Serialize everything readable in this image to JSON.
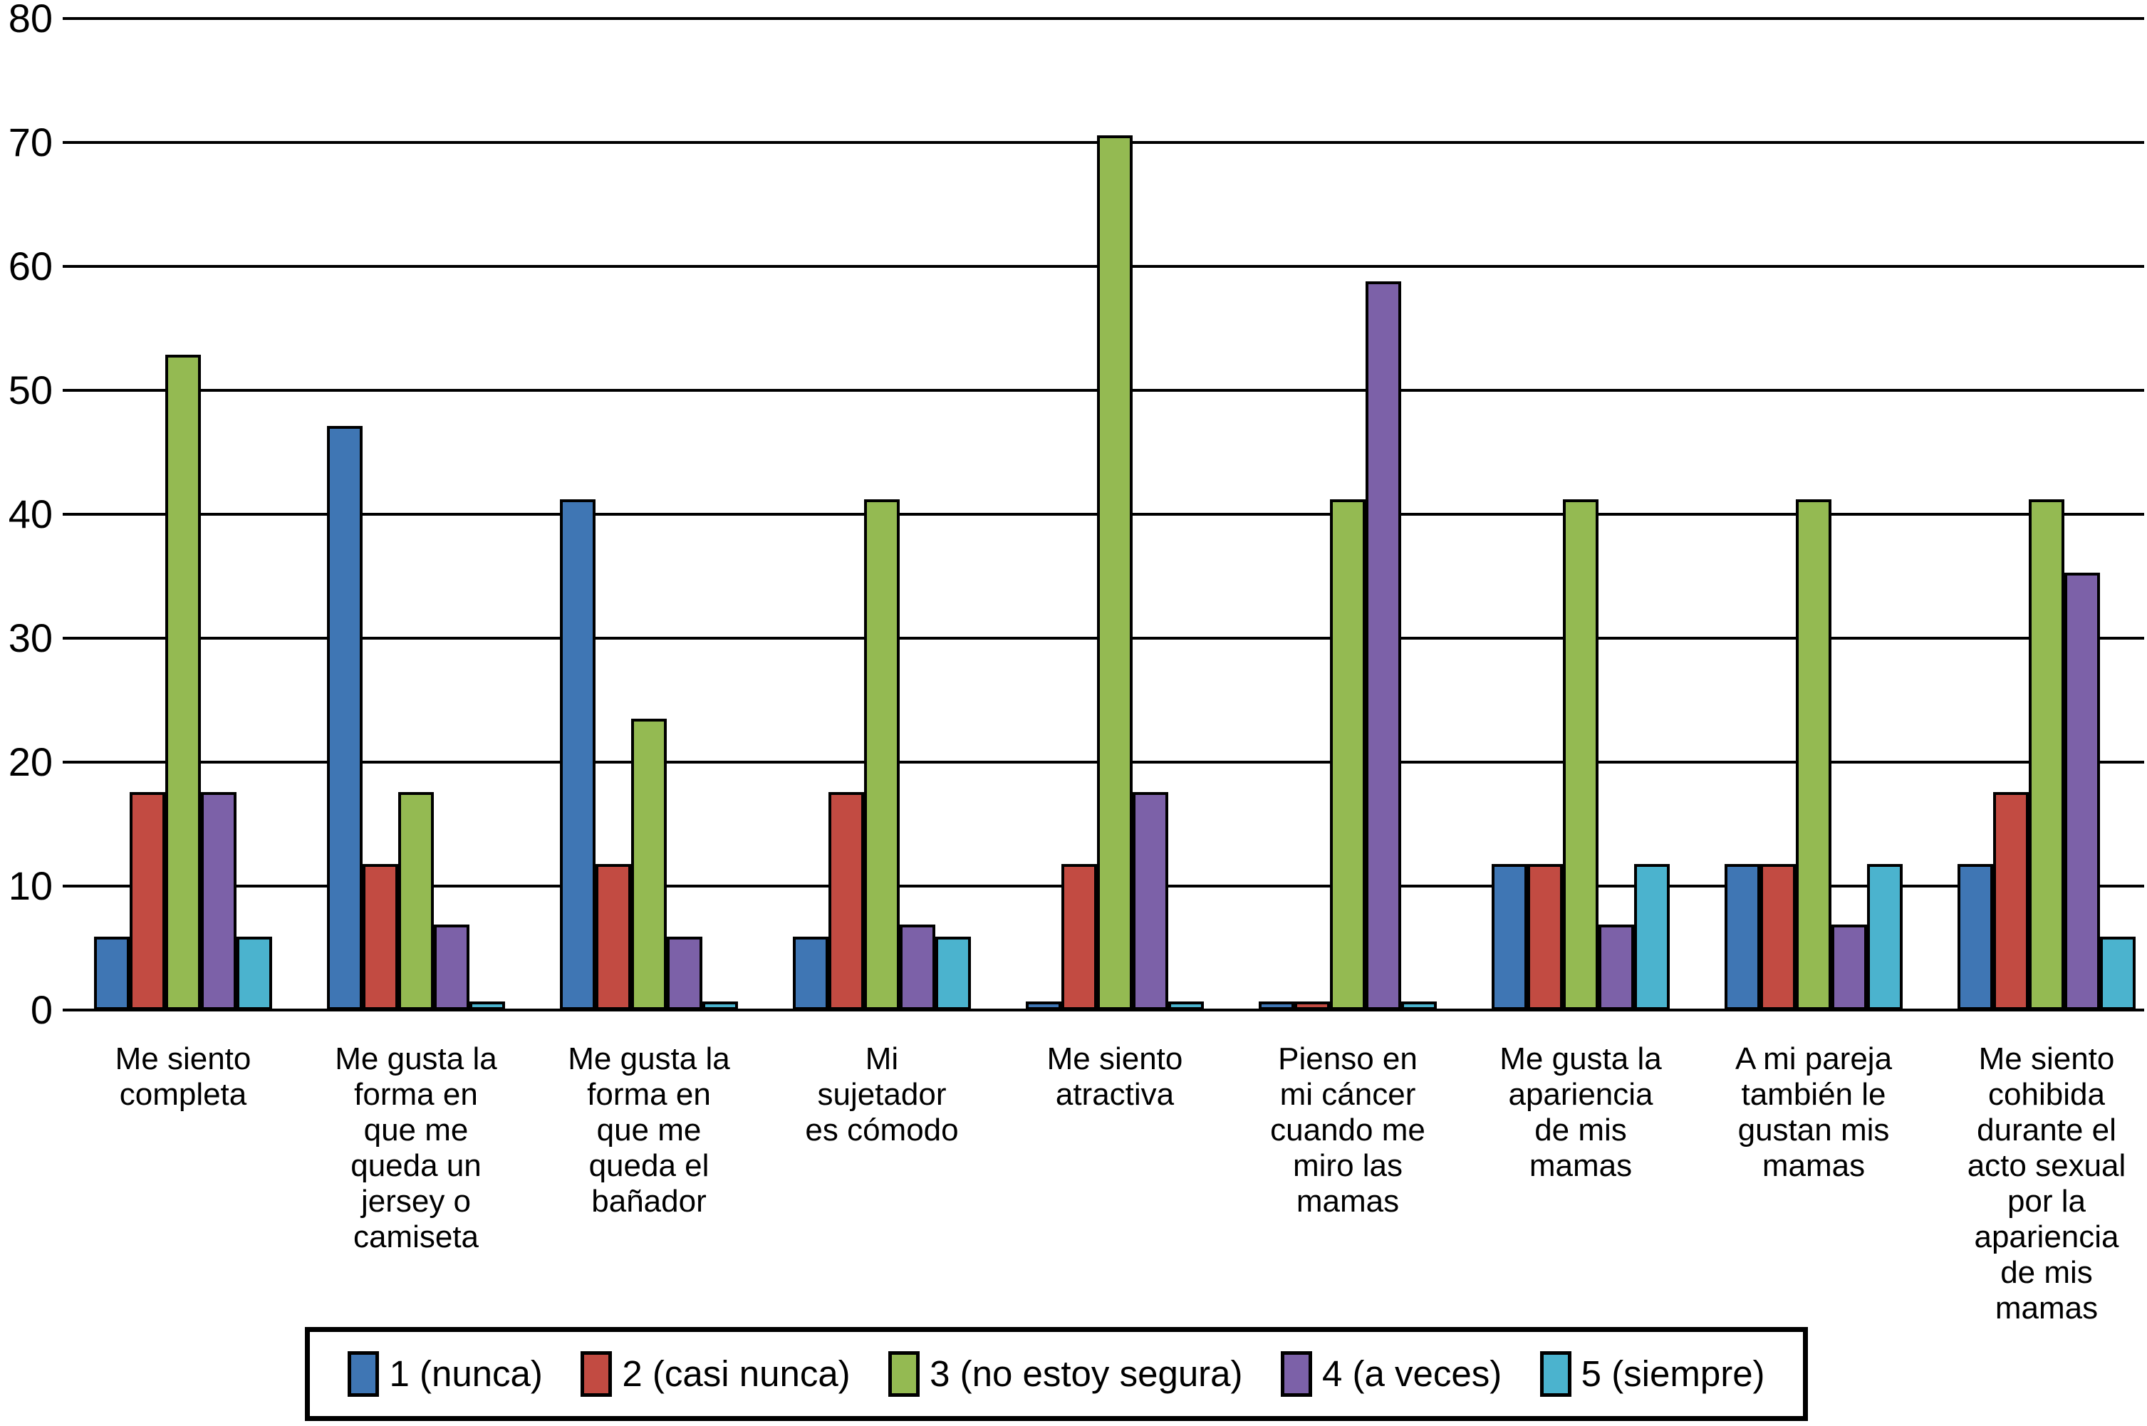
{
  "figure": {
    "background": "#ffffff",
    "title": "",
    "axis_color": "#000000"
  },
  "chart_data": {
    "type": "bar",
    "title": "",
    "xlabel": "",
    "ylabel": "",
    "ylim": [
      0,
      80
    ],
    "yticks": [
      0,
      10,
      20,
      30,
      40,
      50,
      60,
      70,
      80
    ],
    "grid": true,
    "legend_position": "bottom",
    "categories": [
      "Me siento completa",
      "Me gusta la forma en que me queda un jersey o camiseta",
      "Me gusta la forma en que me queda el bañador",
      "Mi sujetador es cómodo",
      "Me siento atractiva",
      "Pienso en mi cáncer cuando me miro las mamas",
      "Me gusta la apariencia de mis mamas",
      "A mi pareja también le gustan mis mamas",
      "Me siento cohibida durante el acto sexual por la apariencia de mis mamas"
    ],
    "category_label_lines": [
      [
        "Me siento",
        "completa"
      ],
      [
        "Me gusta la",
        "forma en",
        "que me",
        "queda un",
        "jersey o",
        "camiseta"
      ],
      [
        "Me gusta la",
        "forma en",
        "que me",
        "queda el",
        "bañador"
      ],
      [
        "Mi",
        "sujetador",
        "es cómodo"
      ],
      [
        "Me siento",
        "atractiva"
      ],
      [
        "Pienso en",
        "mi cáncer",
        "cuando me",
        "miro las",
        "mamas"
      ],
      [
        "Me gusta la",
        "apariencia",
        "de mis",
        "mamas"
      ],
      [
        "A mi pareja",
        "también le",
        "gustan mis",
        "mamas"
      ],
      [
        "Me siento",
        "cohibida",
        "durante el",
        "acto sexual",
        "por la",
        "apariencia",
        "de mis",
        "mamas"
      ]
    ],
    "series": [
      {
        "name": "1 (nunca)",
        "color": "#3F76B4",
        "values": [
          5.9,
          47.1,
          41.2,
          5.9,
          0.7,
          0.7,
          11.8,
          11.8,
          11.8
        ]
      },
      {
        "name": "2 (casi nunca)",
        "color": "#C24B42",
        "values": [
          17.6,
          11.8,
          11.8,
          17.6,
          11.8,
          0.7,
          11.8,
          11.8,
          17.6
        ]
      },
      {
        "name": "3 (no estoy segura)",
        "color": "#94BA52",
        "values": [
          52.9,
          17.6,
          23.5,
          41.2,
          70.6,
          41.2,
          41.2,
          41.2,
          41.2
        ]
      },
      {
        "name": "4 (a veces)",
        "color": "#7C61A8",
        "values": [
          17.6,
          6.9,
          5.9,
          6.9,
          17.6,
          58.8,
          6.9,
          6.9,
          35.3
        ]
      },
      {
        "name": "5 (siempre)",
        "color": "#4BB3CE",
        "values": [
          5.9,
          0.7,
          0.7,
          5.9,
          0.7,
          0.7,
          11.8,
          11.8,
          5.9
        ]
      }
    ]
  }
}
